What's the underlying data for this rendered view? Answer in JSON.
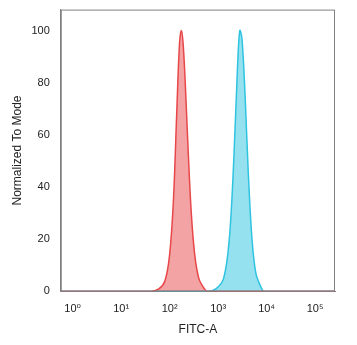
{
  "chart_data": {
    "type": "area",
    "x_label": "FITC-A",
    "y_label": "Normalized To Mode",
    "log": "x",
    "grid": false,
    "xlim": [
      0.57,
      257000
    ],
    "xticks": [
      {
        "value": 1,
        "label": "10⁰"
      },
      {
        "value": 10,
        "label": "10¹"
      },
      {
        "value": 100,
        "label": "10²"
      },
      {
        "value": 1000,
        "label": "10³"
      },
      {
        "value": 10000,
        "label": "10⁴"
      },
      {
        "value": 100000,
        "label": "10⁵"
      }
    ],
    "ylim": [
      0,
      108
    ],
    "yticks": [
      0,
      20,
      40,
      60,
      80,
      100
    ],
    "series": [
      {
        "color": "#e8474a",
        "x": [
          0.57,
          40,
          60,
          80,
          100,
          120,
          140,
          160,
          175,
          190,
          210,
          240,
          280,
          330,
          400,
          500,
          600,
          257000
        ],
        "values": [
          0,
          0,
          1,
          4,
          14,
          35,
          68,
          95,
          100,
          95,
          80,
          55,
          30,
          14,
          5,
          1.5,
          0,
          0
        ]
      },
      {
        "color": "#2ec4e0",
        "x": [
          0.57,
          600,
          900,
          1300,
          1700,
          2100,
          2500,
          2800,
          3100,
          3600,
          4200,
          5000,
          6000,
          7500,
          9000,
          257000
        ],
        "values": [
          0,
          0,
          1,
          5,
          20,
          50,
          85,
          100,
          97,
          75,
          45,
          20,
          7,
          2,
          0,
          0
        ]
      }
    ]
  }
}
